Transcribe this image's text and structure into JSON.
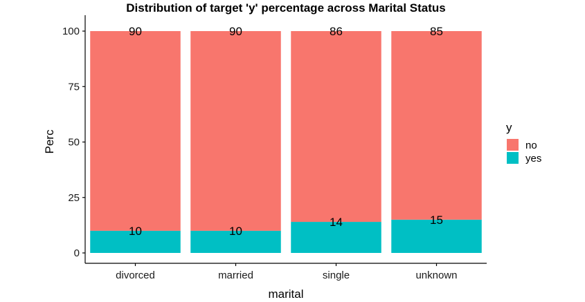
{
  "chart_data": {
    "type": "bar",
    "stacked": true,
    "title": "Distribution of target 'y' percentage across Marital Status",
    "xlabel": "marital",
    "ylabel": "Perc",
    "categories": [
      "divorced",
      "married",
      "single",
      "unknown"
    ],
    "series": [
      {
        "name": "yes",
        "values": [
          10,
          10,
          14,
          15
        ],
        "color": "#00BFC4"
      },
      {
        "name": "no",
        "values": [
          90,
          90,
          86,
          85
        ],
        "color": "#F8766D"
      }
    ],
    "ylim": [
      0,
      100
    ],
    "yticks": [
      0,
      25,
      50,
      75,
      100
    ],
    "grid": false,
    "legend": {
      "title": "y",
      "position": "right",
      "entries": [
        {
          "label": "no",
          "color": "#F8766D"
        },
        {
          "label": "yes",
          "color": "#00BFC4"
        }
      ]
    }
  }
}
